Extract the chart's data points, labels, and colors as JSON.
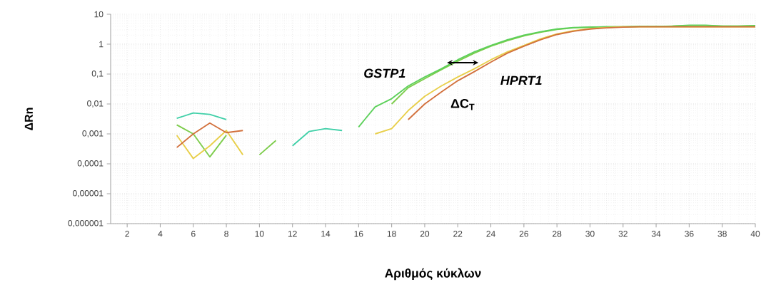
{
  "chart_data": {
    "type": "line",
    "xlabel": "Αριθμός κύκλων",
    "ylabel": "ΔRn",
    "log": "y",
    "grid": true,
    "marker": "none",
    "line_style": "solid",
    "xlim": [
      1,
      40
    ],
    "xticks": [
      2,
      4,
      6,
      8,
      10,
      12,
      14,
      16,
      18,
      20,
      22,
      24,
      26,
      28,
      30,
      32,
      34,
      36,
      38,
      40
    ],
    "ylim": [
      1e-06,
      10
    ],
    "yticks": [
      {
        "value": 1e-06,
        "label": "0,000001"
      },
      {
        "value": 1e-05,
        "label": "0,00001"
      },
      {
        "value": 0.0001,
        "label": "0,0001"
      },
      {
        "value": 0.001,
        "label": "0,001"
      },
      {
        "value": 0.01,
        "label": "0,01"
      },
      {
        "value": 0.1,
        "label": "0,1"
      },
      1,
      10
    ],
    "x": [
      5,
      6,
      7,
      8,
      9,
      10,
      11,
      12,
      13,
      14,
      15,
      16,
      17,
      18,
      19,
      20,
      21,
      22,
      23,
      24,
      25,
      26,
      27,
      28,
      29,
      30,
      31,
      32,
      33,
      34,
      35,
      36,
      37,
      38,
      39,
      40
    ],
    "series": [
      {
        "color": "#40d0a8",
        "values": [
          0.0033,
          0.005,
          0.0045,
          0.003,
          null,
          null,
          null,
          0.0004,
          0.0012,
          0.0015,
          0.0013,
          null,
          null,
          null,
          null,
          null,
          null,
          null,
          null,
          null,
          null,
          null,
          null,
          null,
          null,
          null,
          null,
          null,
          null,
          null,
          null,
          null,
          null,
          null,
          null,
          null
        ]
      },
      {
        "color": "#7ccc4a",
        "values": [
          0.002,
          0.001,
          0.00017,
          0.0009,
          null,
          0.0002,
          0.0006,
          null,
          null,
          null,
          null,
          null,
          null,
          0.01,
          0.035,
          0.07,
          0.14,
          0.27,
          0.5,
          0.85,
          1.3,
          1.9,
          2.5,
          3.1,
          3.5,
          3.7,
          3.8,
          3.8,
          3.9,
          3.9,
          4,
          4.2,
          4.2,
          4,
          4,
          4.1
        ]
      },
      {
        "color": "#5cd05a",
        "values": [
          null,
          null,
          null,
          null,
          null,
          null,
          null,
          null,
          null,
          null,
          null,
          0.0017,
          0.008,
          0.015,
          0.04,
          0.08,
          0.15,
          0.3,
          0.55,
          0.9,
          1.4,
          2,
          2.6,
          3.2,
          3.6,
          3.7,
          3.8,
          3.8,
          3.9,
          3.9,
          4,
          4.3,
          4.3,
          4,
          4,
          4.2
        ]
      },
      {
        "color": "#e8cf4a",
        "values": [
          0.0009,
          0.00015,
          0.0004,
          0.0013,
          0.0002,
          null,
          null,
          null,
          null,
          null,
          null,
          null,
          0.001,
          0.0015,
          0.006,
          0.018,
          0.04,
          0.08,
          0.15,
          0.3,
          0.55,
          0.9,
          1.5,
          2.2,
          2.8,
          3.3,
          3.6,
          3.8,
          3.8,
          3.8,
          3.8,
          3.8,
          3.8,
          3.8,
          3.8,
          3.8
        ]
      },
      {
        "color": "#d2703c",
        "values": [
          0.00035,
          0.001,
          0.0023,
          0.0011,
          0.0013,
          null,
          null,
          null,
          null,
          null,
          null,
          null,
          null,
          null,
          0.003,
          0.01,
          0.025,
          0.06,
          0.12,
          0.25,
          0.5,
          0.85,
          1.4,
          2.1,
          2.7,
          3.2,
          3.5,
          3.7,
          3.8,
          3.8,
          3.8,
          3.8,
          3.8,
          3.8,
          3.8,
          3.8
        ]
      }
    ],
    "annotations": [
      "GSTP1",
      "HPRT1",
      {
        "text": "ΔC$_{T}$",
        "x": 22.3,
        "y": 0.24
      }
    ]
  }
}
